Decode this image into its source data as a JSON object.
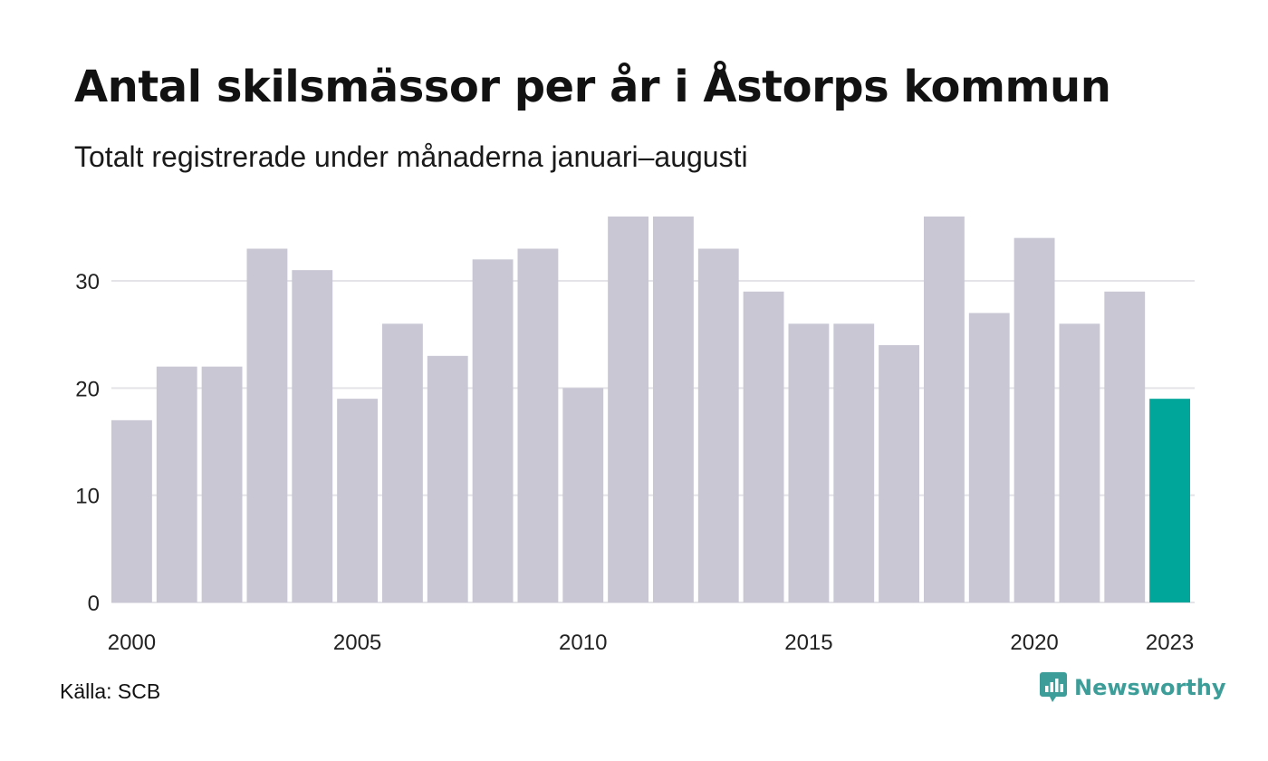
{
  "header": {
    "title": "Antal skilsmässor per år i Åstorps kommun",
    "subtitle": "Totalt registrerade under månaderna januari–augusti"
  },
  "footer": {
    "source": "Källa: SCB",
    "brand": "Newsworthy",
    "brand_icon": "bar-chart-speech-bubble-icon"
  },
  "colors": {
    "bar": "#c8c7d3",
    "highlight": "#00a69a",
    "grid": "#e4e4e8",
    "brand": "#3d9e99"
  },
  "chart_data": {
    "type": "bar",
    "categories": [
      "2000",
      "2001",
      "2002",
      "2003",
      "2004",
      "2005",
      "2006",
      "2007",
      "2008",
      "2009",
      "2010",
      "2011",
      "2012",
      "2013",
      "2014",
      "2015",
      "2016",
      "2017",
      "2018",
      "2019",
      "2020",
      "2021",
      "2022",
      "2023"
    ],
    "values": [
      17,
      22,
      22,
      33,
      31,
      19,
      26,
      23,
      32,
      33,
      20,
      36,
      36,
      33,
      29,
      26,
      26,
      24,
      36,
      27,
      34,
      26,
      29,
      19
    ],
    "highlight_category": "2023",
    "x_tick_labels": [
      "2000",
      "2005",
      "2010",
      "2015",
      "2020",
      "2023"
    ],
    "y_ticks": [
      0,
      10,
      20,
      30
    ],
    "ylim": [
      0,
      36
    ],
    "grid": true,
    "legend": false
  }
}
